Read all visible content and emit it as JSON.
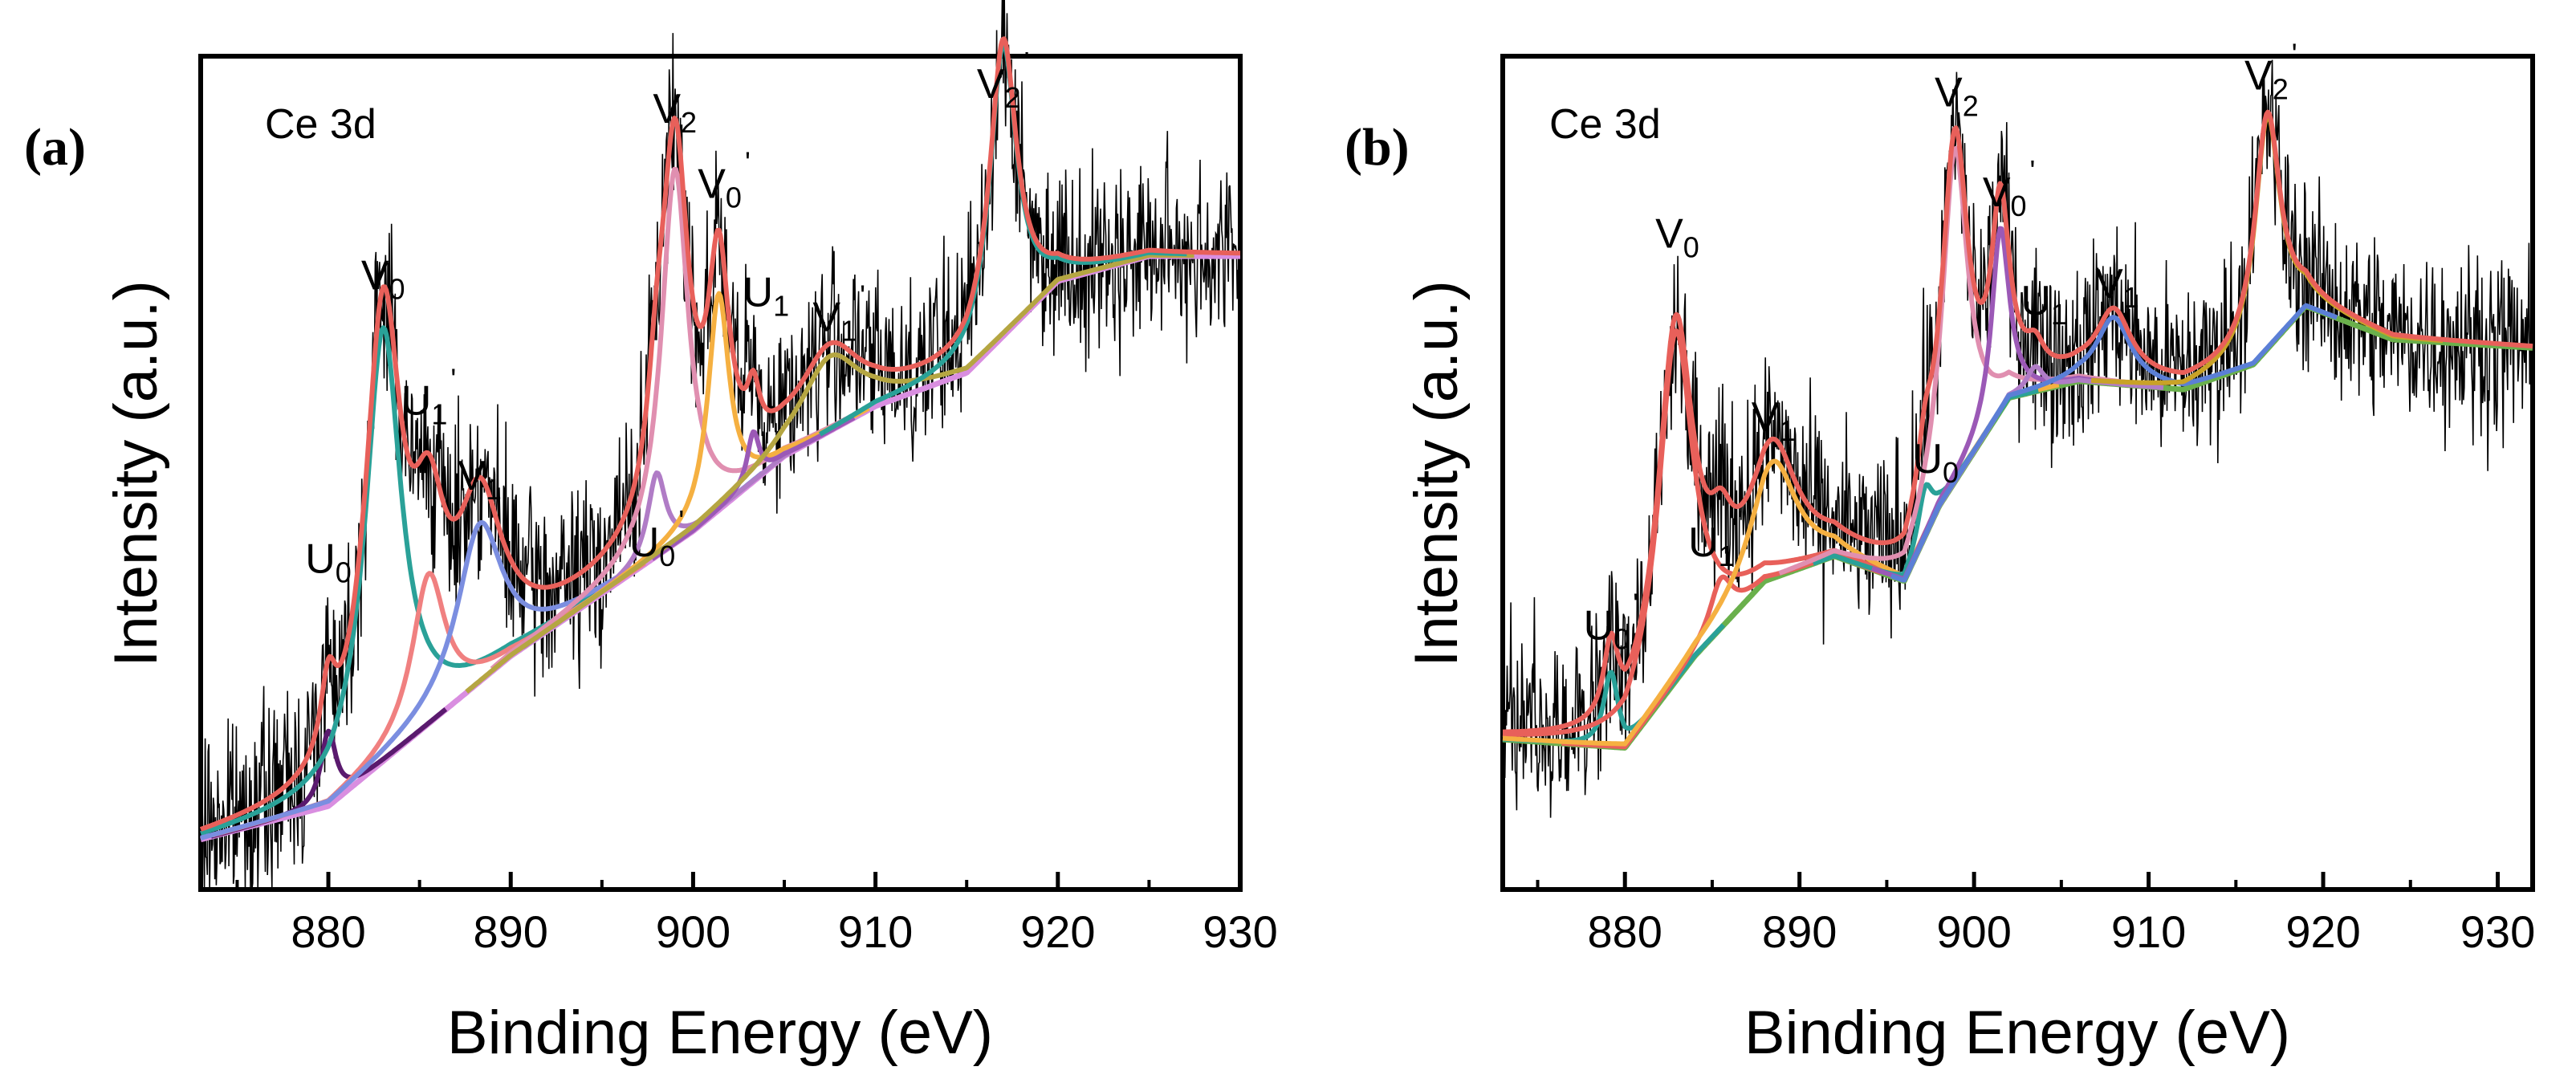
{
  "chart_data": [
    {
      "type": "line",
      "panel_label": "(a)",
      "title": "Ce 3d",
      "xlabel": "Binding Energy (eV)",
      "ylabel": "Intensity (a.u.)",
      "xlim": [
        873,
        930
      ],
      "ylim": [
        0,
        1
      ],
      "xticks": [
        880,
        890,
        900,
        910,
        920,
        930
      ],
      "xtick_labels": [
        "880",
        "890",
        "900",
        "910",
        "920",
        "930"
      ],
      "raw_noise_sigma": 0.055,
      "background": [
        [
          873,
          0.06
        ],
        [
          880,
          0.1
        ],
        [
          890,
          0.28
        ],
        [
          900,
          0.43
        ],
        [
          905,
          0.52
        ],
        [
          910,
          0.58
        ],
        [
          915,
          0.62
        ],
        [
          920,
          0.73
        ],
        [
          925,
          0.76
        ],
        [
          930,
          0.76
        ]
      ],
      "components": [
        {
          "name": "U0",
          "color": "#5a1a6e",
          "center": 880.0,
          "height": 0.09,
          "width": 0.5
        },
        {
          "name": "V0",
          "color": "#2aa198",
          "center": 883.0,
          "height": 0.52,
          "width": 1.2
        },
        {
          "name": "U1'",
          "color": "#f08080",
          "center": 885.5,
          "height": 0.18,
          "width": 1.1
        },
        {
          "name": "V1",
          "color": "#7b8ee0",
          "center": 888.3,
          "height": 0.19,
          "width": 1.5
        },
        {
          "name": "U0'",
          "color": "#b07cc6",
          "center": 898.0,
          "height": 0.1,
          "width": 0.6
        },
        {
          "name": "V2",
          "color": "#e08fb0",
          "center": 899.0,
          "height": 0.45,
          "width": 0.9
        },
        {
          "name": "V0'",
          "color": "#f5b041",
          "center": 901.4,
          "height": 0.26,
          "width": 0.7
        },
        {
          "name": "U1",
          "color": "#9b59b6",
          "center": 903.3,
          "height": 0.06,
          "width": 0.4
        },
        {
          "name": "V1'",
          "color": "#b5a642",
          "center": 907.5,
          "height": 0.09,
          "width": 2.0
        },
        {
          "name": "V2'",
          "color": "#2aa198",
          "center": 917.0,
          "height": 0.35,
          "width": 0.9
        }
      ],
      "envelope_color": "#e8605a",
      "background_color": "#d98ee0",
      "peak_labels": [
        {
          "main": "U",
          "sub": "0",
          "x": 880.0,
          "y": 0.38
        },
        {
          "main": "V",
          "sub": "0",
          "x": 883.0,
          "y": 0.72
        },
        {
          "main": "U",
          "sub": "1",
          "x": 885.5,
          "y": 0.57
        },
        {
          "main": "V",
          "sub": "1",
          "x": 888.3,
          "y": 0.48
        },
        {
          "main": "U",
          "sub": "0",
          "x": 898.0,
          "y": 0.4
        },
        {
          "main": "V",
          "sub": "2",
          "x": 899.0,
          "y": 0.92
        },
        {
          "main": "V",
          "sub": "0",
          "x": 901.7,
          "y": 0.83
        },
        {
          "main": "U",
          "sub": "1",
          "x": 904.0,
          "y": 0.7
        },
        {
          "main": "V",
          "sub": "1",
          "x": 908.0,
          "y": 0.67
        },
        {
          "main": "V",
          "sub": "2",
          "x": 917.0,
          "y": 0.95
        }
      ]
    },
    {
      "type": "line",
      "panel_label": "(b)",
      "title": "Ce 3d",
      "xlabel": "Binding Energy (eV)",
      "ylabel": "Intensity (a.u.)",
      "xlim": [
        873,
        932
      ],
      "ylim": [
        0,
        1
      ],
      "xticks": [
        880,
        890,
        900,
        910,
        920,
        930
      ],
      "xtick_labels": [
        "880",
        "890",
        "900",
        "910",
        "920",
        "930"
      ],
      "raw_noise_sigma": 0.055,
      "background": [
        [
          873,
          0.18
        ],
        [
          880,
          0.17
        ],
        [
          884,
          0.28
        ],
        [
          888,
          0.37
        ],
        [
          892,
          0.4
        ],
        [
          896,
          0.37
        ],
        [
          898,
          0.46
        ],
        [
          902,
          0.59
        ],
        [
          906,
          0.61
        ],
        [
          912,
          0.6
        ],
        [
          916,
          0.63
        ],
        [
          919,
          0.7
        ],
        [
          924,
          0.66
        ],
        [
          932,
          0.65
        ]
      ],
      "components": [
        {
          "name": "U0'",
          "color": "#2aa198",
          "center": 879.2,
          "height": 0.09,
          "width": 0.5
        },
        {
          "name": "V0",
          "color": "#e8605a",
          "center": 882.9,
          "height": 0.42,
          "width": 1.2
        },
        {
          "name": "U1'",
          "color": "#e8605a",
          "center": 885.5,
          "height": 0.06,
          "width": 0.8
        },
        {
          "name": "V1",
          "color": "#f5b041",
          "center": 888.5,
          "height": 0.14,
          "width": 1.6
        },
        {
          "name": "U0",
          "color": "#2aa198",
          "center": 897.2,
          "height": 0.06,
          "width": 0.5
        },
        {
          "name": "V2",
          "color": "#e08fb0",
          "center": 898.9,
          "height": 0.4,
          "width": 0.9
        },
        {
          "name": "V0'",
          "color": "#9b59b6",
          "center": 901.5,
          "height": 0.22,
          "width": 0.6
        },
        {
          "name": "U1",
          "color": "#b07cc6",
          "center": 903.5,
          "height": 0.03,
          "width": 0.6
        },
        {
          "name": "V1",
          "color": "#5b7fd6",
          "center": 908.0,
          "height": 0.08,
          "width": 1.2
        },
        {
          "name": "V2'",
          "color": "#c9a227",
          "center": 916.8,
          "height": 0.28,
          "width": 0.9
        }
      ],
      "envelope_color": "#e8605a",
      "background_color": "#6ab04c",
      "peak_labels": [
        {
          "main": "U",
          "sub": "0",
          "x": 879.2,
          "y": 0.3
        },
        {
          "main": "V",
          "sub": "0",
          "x": 883.0,
          "y": 0.77
        },
        {
          "main": "U",
          "sub": "1",
          "x": 885.2,
          "y": 0.4
        },
        {
          "main": "V",
          "sub": "1",
          "x": 888.5,
          "y": 0.55
        },
        {
          "main": "U",
          "sub": "0",
          "x": 897.8,
          "y": 0.5
        },
        {
          "main": "V",
          "sub": "2",
          "x": 899.0,
          "y": 0.94
        },
        {
          "main": "V",
          "sub": "0",
          "x": 902.0,
          "y": 0.82
        },
        {
          "main": "U",
          "sub": "1",
          "x": 904.0,
          "y": 0.69
        },
        {
          "main": "V",
          "sub": "1",
          "x": 908.2,
          "y": 0.71
        },
        {
          "main": "V",
          "sub": "2",
          "x": 917.0,
          "y": 0.96
        }
      ]
    }
  ],
  "primes": [
    "'"
  ]
}
